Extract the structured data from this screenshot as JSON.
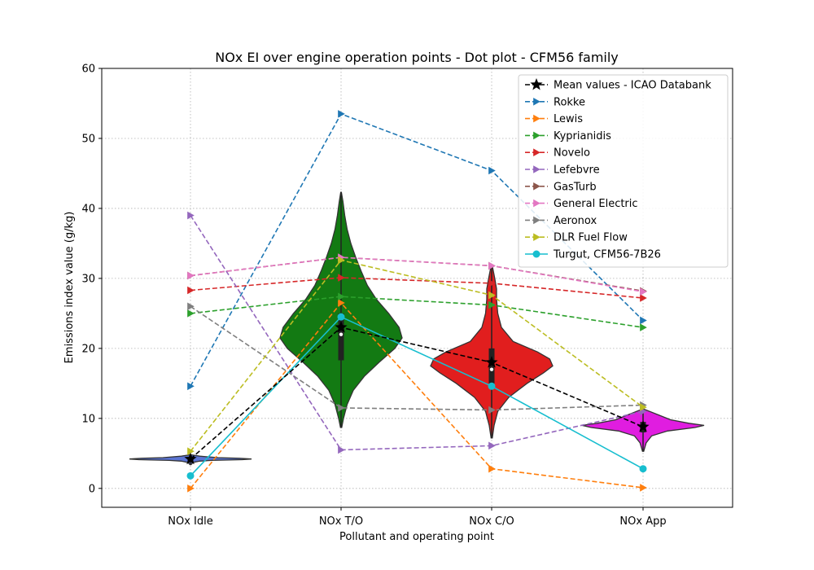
{
  "chart_data": {
    "type": "scatter",
    "title": "NOx EI over engine operation points - Dot plot - CFM56 family",
    "xlabel": "Pollutant and operating point",
    "ylabel": "Emissions index value (g/kg)",
    "ylim": [
      -2.7,
      60
    ],
    "yticks": [
      0,
      10,
      20,
      30,
      40,
      50,
      60
    ],
    "categories": [
      "NOx Idle",
      "NOx T/O",
      "NOx C/O",
      "NOx App"
    ],
    "grid": true,
    "legend_position": "top-right",
    "violins": [
      {
        "category": "NOx Idle",
        "color": "#5b74d3",
        "min": 3.4,
        "max": 4.8,
        "q1": 4.0,
        "median": 4.2,
        "q3": 4.4,
        "profile": [
          [
            3.4,
            0.01
          ],
          [
            3.7,
            0.04
          ],
          [
            3.9,
            0.15
          ],
          [
            4.0,
            0.35
          ],
          [
            4.1,
            0.85
          ],
          [
            4.2,
            1.0
          ],
          [
            4.3,
            0.8
          ],
          [
            4.4,
            0.45
          ],
          [
            4.6,
            0.15
          ],
          [
            4.8,
            0.01
          ]
        ]
      },
      {
        "category": "NOx T/O",
        "color": "#137a13",
        "min": 8.7,
        "max": 42.3,
        "q1": 18.3,
        "median": 22.0,
        "q3": 25.0,
        "profile": [
          [
            8.7,
            0.01
          ],
          [
            10,
            0.04
          ],
          [
            12,
            0.1
          ],
          [
            14,
            0.2
          ],
          [
            16,
            0.38
          ],
          [
            18,
            0.62
          ],
          [
            20,
            0.88
          ],
          [
            21.5,
            1.0
          ],
          [
            23,
            0.95
          ],
          [
            25,
            0.78
          ],
          [
            27,
            0.58
          ],
          [
            29,
            0.43
          ],
          [
            31,
            0.33
          ],
          [
            33,
            0.24
          ],
          [
            35,
            0.16
          ],
          [
            37,
            0.1
          ],
          [
            39,
            0.06
          ],
          [
            41,
            0.03
          ],
          [
            42.3,
            0.005
          ]
        ]
      },
      {
        "category": "NOx C/O",
        "color": "#e11e1e",
        "min": 7.2,
        "max": 31.8,
        "q1": 15.0,
        "median": 17.0,
        "q3": 20.0,
        "profile": [
          [
            7.2,
            0.01
          ],
          [
            9,
            0.04
          ],
          [
            11,
            0.1
          ],
          [
            13,
            0.28
          ],
          [
            15,
            0.58
          ],
          [
            16.5,
            0.85
          ],
          [
            17.5,
            1.0
          ],
          [
            18.5,
            0.95
          ],
          [
            19.5,
            0.75
          ],
          [
            21,
            0.35
          ],
          [
            23,
            0.16
          ],
          [
            25,
            0.1
          ],
          [
            27,
            0.08
          ],
          [
            28.5,
            0.08
          ],
          [
            30,
            0.05
          ],
          [
            31.8,
            0.01
          ]
        ]
      },
      {
        "category": "NOx App",
        "color": "#e01de0",
        "min": 5.3,
        "max": 11.3,
        "q1": 8.0,
        "median": 8.8,
        "q3": 9.5,
        "profile": [
          [
            5.3,
            0.01
          ],
          [
            6.5,
            0.05
          ],
          [
            7.5,
            0.14
          ],
          [
            8.2,
            0.4
          ],
          [
            8.7,
            0.85
          ],
          [
            9.0,
            1.0
          ],
          [
            9.3,
            0.75
          ],
          [
            9.8,
            0.45
          ],
          [
            10.5,
            0.25
          ],
          [
            11.3,
            0.02
          ]
        ]
      }
    ],
    "series": [
      {
        "name": "Mean values - ICAO Databank",
        "color": "#000000",
        "marker": "star",
        "dash": "dashed",
        "values": [
          4.2,
          23.0,
          18.0,
          8.8
        ]
      },
      {
        "name": "Rokke",
        "color": "#1f77b4",
        "marker": "triangle-right",
        "dash": "dashed",
        "values": [
          14.6,
          53.5,
          45.4,
          24.0
        ]
      },
      {
        "name": "Lewis",
        "color": "#ff7f0e",
        "marker": "triangle-right",
        "dash": "dashed",
        "values": [
          0.0,
          26.5,
          2.8,
          0.1
        ]
      },
      {
        "name": "Kyprianidis",
        "color": "#2ca02c",
        "marker": "triangle-right",
        "dash": "dashed",
        "values": [
          25.0,
          27.4,
          26.2,
          23.0
        ]
      },
      {
        "name": "Novelo",
        "color": "#d62728",
        "marker": "triangle-right",
        "dash": "dashed",
        "values": [
          28.3,
          30.1,
          29.3,
          27.2
        ]
      },
      {
        "name": "Lefebvre",
        "color": "#9467bd",
        "marker": "triangle-right",
        "dash": "dashed",
        "values": [
          39.0,
          5.5,
          6.1,
          11.0
        ]
      },
      {
        "name": "GasTurb",
        "color": "#8c564b",
        "marker": "triangle-right",
        "dash": "dashed",
        "values": [
          30.4,
          33.0,
          31.8,
          28.2
        ]
      },
      {
        "name": "General Electric",
        "color": "#e377c2",
        "marker": "triangle-right",
        "dash": "dashed",
        "values": [
          30.4,
          33.0,
          31.8,
          28.1
        ]
      },
      {
        "name": "Aeronox",
        "color": "#7f7f7f",
        "marker": "triangle-right",
        "dash": "dashed",
        "values": [
          26.0,
          11.5,
          11.2,
          11.9
        ]
      },
      {
        "name": "DLR Fuel Flow",
        "color": "#bcbd22",
        "marker": "triangle-right",
        "dash": "dashed",
        "values": [
          5.3,
          32.6,
          27.6,
          11.6
        ]
      },
      {
        "name": "Turgut, CFM56-7B26",
        "color": "#17becf",
        "marker": "circle",
        "dash": "solid",
        "values": [
          1.8,
          24.5,
          14.6,
          2.8
        ]
      }
    ]
  }
}
